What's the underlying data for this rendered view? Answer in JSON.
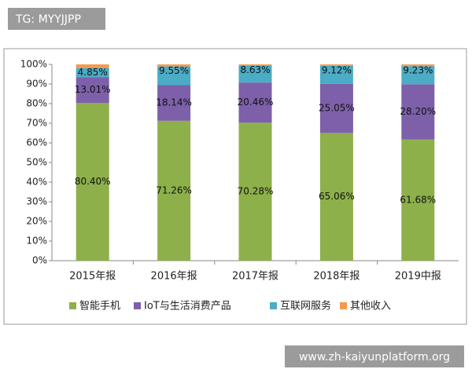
{
  "chart_data": {
    "type": "stacked-bar",
    "categories": [
      "2015年报",
      "2016年报",
      "2017年报",
      "2018年报",
      "2019中报"
    ],
    "series": [
      {
        "name": "智能手机",
        "color": "#8db04a",
        "values": [
          80.4,
          71.26,
          70.28,
          65.06,
          61.68
        ],
        "value_labels": [
          "80.40%",
          "71.26%",
          "70.28%",
          "65.06%",
          "61.68%"
        ]
      },
      {
        "name": "IoT与生活消费产品",
        "color": "#7d60a9",
        "values": [
          13.01,
          18.14,
          20.46,
          25.05,
          28.2
        ],
        "value_labels": [
          "13.01%",
          "18.14%",
          "20.46%",
          "25.05%",
          "28.20%"
        ]
      },
      {
        "name": "互联网服务",
        "color": "#4bacc6",
        "values": [
          4.85,
          9.55,
          8.63,
          9.12,
          9.23
        ],
        "value_labels": [
          "4.85%",
          "9.55%",
          "8.63%",
          "9.12%",
          "9.23%"
        ]
      },
      {
        "name": "其他收入",
        "color": "#f59a4d",
        "values": [
          1.74,
          1.05,
          0.63,
          0.77,
          0.89
        ]
      }
    ],
    "ylim": [
      0,
      100
    ],
    "yticks": [
      {
        "value": 0,
        "label": "0%"
      },
      {
        "value": 10,
        "label": "10%"
      },
      {
        "value": 20,
        "label": "20%"
      },
      {
        "value": 30,
        "label": "30%"
      },
      {
        "value": 40,
        "label": "40%"
      },
      {
        "value": 50,
        "label": "50%"
      },
      {
        "value": 60,
        "label": "60%"
      },
      {
        "value": 70,
        "label": "70%"
      },
      {
        "value": 80,
        "label": "80%"
      },
      {
        "value": 90,
        "label": "90%"
      },
      {
        "value": 100,
        "label": "100%"
      }
    ],
    "legend": "bottom",
    "annotations": [
      "TG: MYYJJPP",
      "www.zh-kaiyunplatform.org"
    ]
  }
}
